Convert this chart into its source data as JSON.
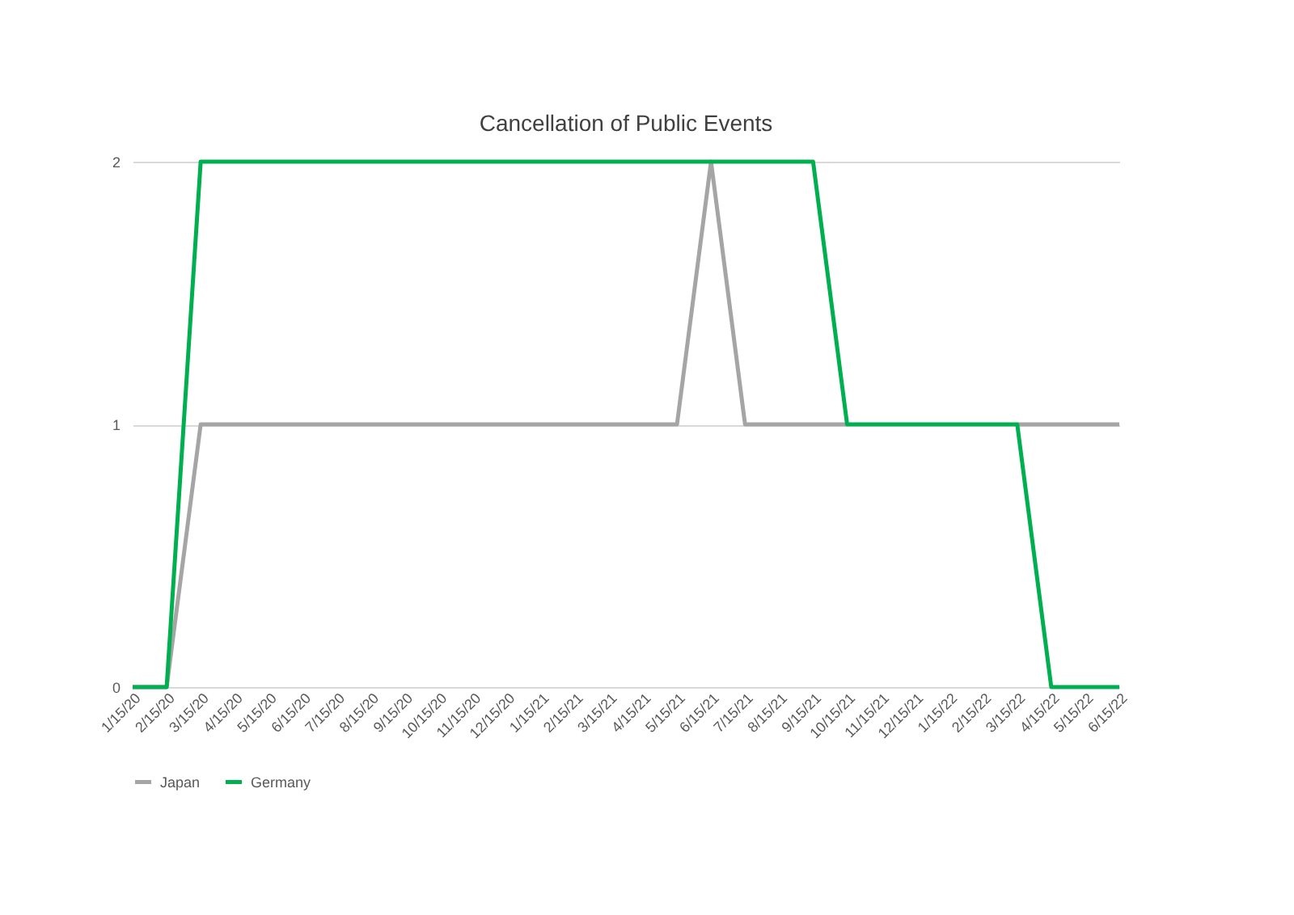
{
  "chart_data": {
    "type": "line",
    "title": "Cancellation of Public Events",
    "categories": [
      "1/15/20",
      "2/15/20",
      "3/15/20",
      "4/15/20",
      "5/15/20",
      "6/15/20",
      "7/15/20",
      "8/15/20",
      "9/15/20",
      "10/15/20",
      "11/15/20",
      "12/15/20",
      "1/15/21",
      "2/15/21",
      "3/15/21",
      "4/15/21",
      "5/15/21",
      "6/15/21",
      "7/15/21",
      "8/15/21",
      "9/15/21",
      "10/15/21",
      "11/15/21",
      "12/15/21",
      "1/15/22",
      "2/15/22",
      "3/15/22",
      "4/15/22",
      "5/15/22",
      "6/15/22"
    ],
    "series": [
      {
        "name": "Japan",
        "color": "#a5a5a5",
        "values": [
          0,
          0,
          1,
          1,
          1,
          1,
          1,
          1,
          1,
          1,
          1,
          1,
          1,
          1,
          1,
          1,
          1,
          2,
          1,
          1,
          1,
          1,
          null,
          null,
          null,
          null,
          1,
          1,
          1,
          1
        ]
      },
      {
        "name": "Germany",
        "color": "#00b050",
        "values": [
          0,
          0,
          2,
          2,
          2,
          2,
          2,
          2,
          2,
          2,
          2,
          2,
          2,
          2,
          2,
          2,
          2,
          2,
          2,
          2,
          2,
          1,
          1,
          1,
          1,
          1,
          1,
          0,
          0,
          0
        ]
      }
    ],
    "ylim": [
      0,
      2
    ],
    "yticks": [
      0,
      1,
      2
    ],
    "grid": "y",
    "legend": "bottom",
    "marker": "none",
    "line_style": "solid"
  }
}
